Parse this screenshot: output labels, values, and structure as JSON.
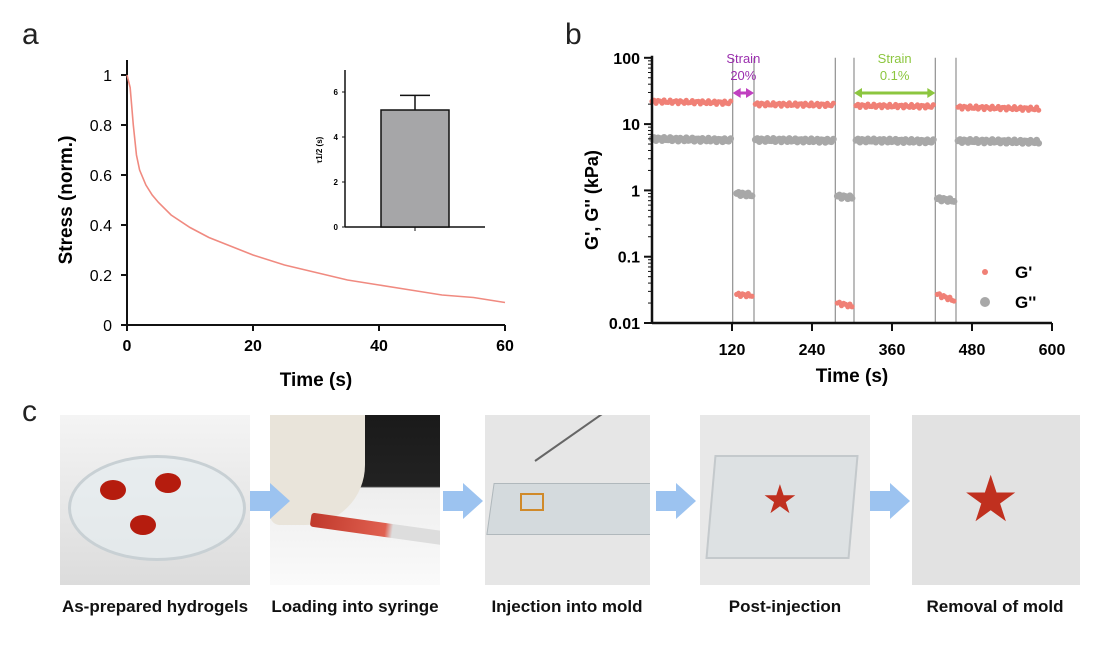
{
  "panels": {
    "a": "a",
    "b": "b",
    "c": "c"
  },
  "chart_data": [
    {
      "type": "line",
      "title": "",
      "xlabel": "Time (s)",
      "ylabel": "Stress (norm.)",
      "xlim": [
        0,
        60
      ],
      "ylim": [
        0,
        1.05
      ],
      "xticks": [
        0,
        20,
        40,
        60
      ],
      "yticks": [
        0,
        0.2,
        0.4,
        0.6,
        0.8,
        1
      ],
      "ytick_labels": [
        "0",
        "0.2",
        "0.4",
        "0.6",
        "0.8",
        "1"
      ],
      "color": "#f08a80",
      "x": [
        0,
        0.5,
        1,
        1.5,
        2,
        3,
        4,
        5,
        7,
        10,
        13,
        16,
        20,
        25,
        30,
        35,
        40,
        45,
        50,
        55,
        60
      ],
      "y": [
        1,
        0.95,
        0.8,
        0.68,
        0.62,
        0.56,
        0.52,
        0.49,
        0.44,
        0.39,
        0.35,
        0.32,
        0.28,
        0.24,
        0.21,
        0.18,
        0.16,
        0.14,
        0.12,
        0.11,
        0.09
      ]
    },
    {
      "type": "bar",
      "inset": true,
      "ylabel": "τ1/2 (s)",
      "ylim": [
        0,
        7
      ],
      "yticks": [
        0,
        2,
        4,
        6
      ],
      "categories": [
        ""
      ],
      "values": [
        5.2
      ],
      "error": [
        0.65
      ],
      "color": "#a6a6a8"
    },
    {
      "type": "scatter",
      "xlabel": "Time (s)",
      "ylabel": "G', G'' (kPa)",
      "yscale": "log",
      "ylim": [
        0.01,
        100
      ],
      "xlim": [
        0,
        600
      ],
      "xticks": [
        120,
        240,
        360,
        480,
        600
      ],
      "yticks": [
        0.01,
        0.1,
        1,
        10,
        100
      ],
      "ytick_labels": [
        "0.01",
        "0.1",
        "1",
        "10",
        "100"
      ],
      "strain_intervals": [
        [
          121,
          153
        ],
        [
          275,
          303
        ],
        [
          425,
          456
        ]
      ],
      "annotations": [
        {
          "label": "Strain",
          "value": "20%",
          "color": "#9b2fae",
          "arrow_color": "#c040c0",
          "range": [
            121,
            153
          ]
        },
        {
          "label": "Strain",
          "value": "0.1%",
          "color": "#8cc63f",
          "arrow_color": "#8cc63f",
          "range": [
            303,
            425
          ]
        }
      ],
      "legend": {
        "position": "bottom-right",
        "entries": [
          "G'",
          "G''"
        ]
      },
      "series": [
        {
          "name": "G'",
          "color": "#f08076",
          "segments": [
            {
              "x": [
                0,
                118
              ],
              "y": [
                22,
                21
              ]
            },
            {
              "x": [
                127,
                150
              ],
              "y": [
                0.027,
                0.026
              ]
            },
            {
              "x": [
                155,
                272
              ],
              "y": [
                20,
                19.5
              ]
            },
            {
              "x": [
                278,
                300
              ],
              "y": [
                0.02,
                0.018
              ]
            },
            {
              "x": [
                306,
                422
              ],
              "y": [
                19,
                18.5
              ]
            },
            {
              "x": [
                428,
                453
              ],
              "y": [
                0.027,
                0.022
              ]
            },
            {
              "x": [
                459,
                580
              ],
              "y": [
                18,
                17
              ]
            }
          ]
        },
        {
          "name": "G''",
          "color": "#a8a8a8",
          "segments": [
            {
              "x": [
                0,
                118
              ],
              "y": [
                6,
                5.7
              ]
            },
            {
              "x": [
                127,
                150
              ],
              "y": [
                0.9,
                0.85
              ]
            },
            {
              "x": [
                155,
                272
              ],
              "y": [
                5.8,
                5.6
              ]
            },
            {
              "x": [
                278,
                300
              ],
              "y": [
                0.82,
                0.78
              ]
            },
            {
              "x": [
                306,
                422
              ],
              "y": [
                5.7,
                5.5
              ]
            },
            {
              "x": [
                428,
                453
              ],
              "y": [
                0.75,
                0.7
              ]
            },
            {
              "x": [
                459,
                580
              ],
              "y": [
                5.6,
                5.4
              ]
            }
          ]
        }
      ]
    }
  ],
  "steps": [
    {
      "caption": "As-prepared hydrogels"
    },
    {
      "caption": "Loading into syringe"
    },
    {
      "caption": "Injection into mold"
    },
    {
      "caption": "Post-injection"
    },
    {
      "caption": "Removal of mold"
    }
  ]
}
